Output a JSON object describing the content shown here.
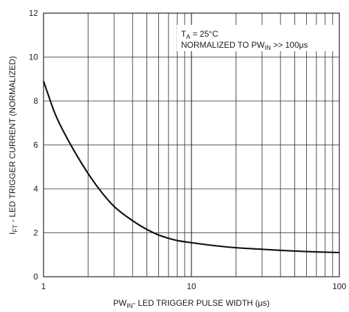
{
  "chart_data": {
    "type": "line",
    "x_scale": "log",
    "xlim": [
      1,
      100
    ],
    "ylim": [
      0,
      12
    ],
    "grid": true,
    "x_ticks": [
      1,
      10,
      100
    ],
    "x_tick_labels": [
      "1",
      "10",
      "100"
    ],
    "y_ticks": [
      0,
      2,
      4,
      6,
      8,
      10,
      12
    ],
    "y_tick_labels": [
      "0",
      "2",
      "4",
      "6",
      "8",
      "10",
      "12"
    ],
    "xlabel": {
      "main": "PW",
      "sub": "IN",
      "rest": "- LED TRIGGER PULSE WIDTH (μs)"
    },
    "ylabel": {
      "main": "I",
      "sub": "FT",
      "rest": " - LED TRIGGER CURRENT (NORMALIZED)"
    },
    "annotation": {
      "line1": {
        "main": "T",
        "sub": "A",
        "rest": " = 25°C"
      },
      "line2": {
        "main": "NORMALIZED TO PW",
        "sub": "IN",
        "rest": " >> 100μs"
      }
    },
    "series": [
      {
        "x": [
          1,
          1.2,
          1.5,
          2,
          2.5,
          3,
          4,
          5,
          6,
          7,
          8,
          10,
          15,
          20,
          30,
          40,
          50,
          70,
          100
        ],
        "y": [
          8.9,
          7.4,
          6.1,
          4.7,
          3.8,
          3.2,
          2.55,
          2.15,
          1.9,
          1.75,
          1.65,
          1.55,
          1.4,
          1.32,
          1.25,
          1.2,
          1.17,
          1.13,
          1.1
        ]
      }
    ],
    "line_color": "#111111",
    "grid_color": "#222222"
  }
}
